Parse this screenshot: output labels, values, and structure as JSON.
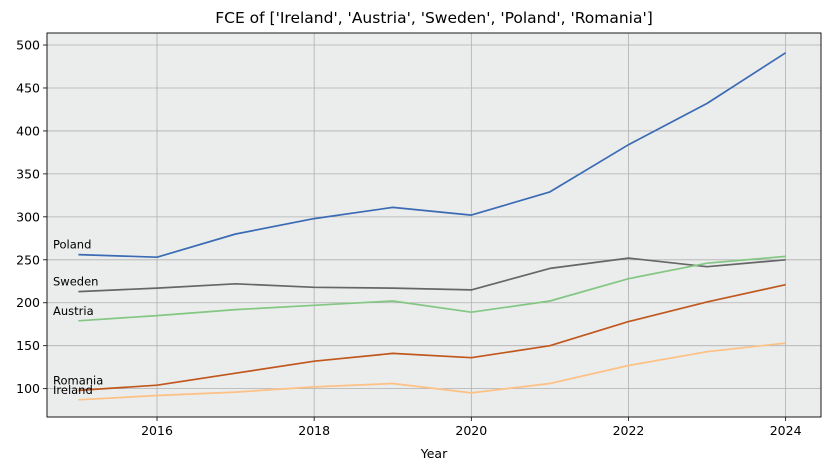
{
  "chart_data": {
    "type": "line",
    "title": "FCE of ['Ireland', 'Austria', 'Sweden', 'Poland', 'Romania']",
    "xlabel": "Year",
    "ylabel": "",
    "x": [
      2015,
      2016,
      2017,
      2018,
      2019,
      2020,
      2021,
      2022,
      2023,
      2024
    ],
    "xlim": [
      2014.6,
      2024.45
    ],
    "ylim": [
      67,
      514
    ],
    "xticks": [
      2016,
      2018,
      2020,
      2022,
      2024
    ],
    "yticks": [
      100,
      150,
      200,
      250,
      300,
      350,
      400,
      450,
      500
    ],
    "grid": true,
    "series": [
      {
        "name": "Poland",
        "color": "#3a6bb4",
        "values": [
          256,
          253,
          280,
          298,
          311,
          302,
          329,
          384,
          432,
          491
        ]
      },
      {
        "name": "Sweden",
        "color": "#666666",
        "values": [
          213,
          217,
          222,
          218,
          217,
          215,
          240,
          252,
          242,
          250
        ]
      },
      {
        "name": "Austria",
        "color": "#82c782",
        "values": [
          179,
          185,
          192,
          197,
          202,
          189,
          202,
          228,
          246,
          254
        ]
      },
      {
        "name": "Romania",
        "color": "#c0581e",
        "values": [
          98,
          104,
          118,
          132,
          141,
          136,
          150,
          178,
          201,
          221
        ]
      },
      {
        "name": "Ireland",
        "color": "#fdc184",
        "values": [
          87,
          92,
          96,
          102,
          106,
          95,
          106,
          127,
          143,
          153
        ]
      }
    ]
  }
}
